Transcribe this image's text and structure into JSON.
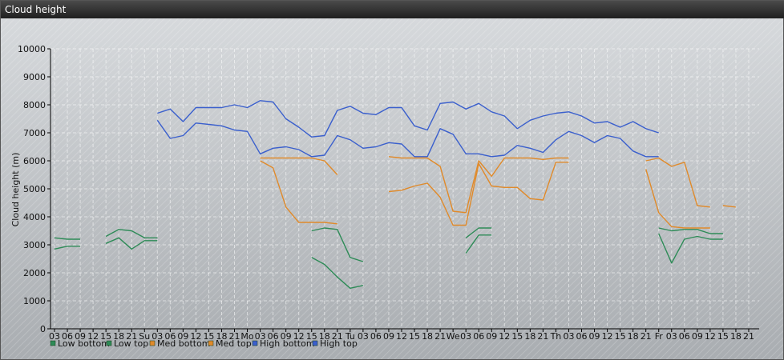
{
  "window": {
    "title": "Cloud height"
  },
  "chart_data": {
    "type": "line",
    "ylabel": "Cloud height (m)",
    "ylim": [
      0,
      10000
    ],
    "yticks": [
      0,
      1000,
      2000,
      3000,
      4000,
      5000,
      6000,
      7000,
      8000,
      9000,
      10000
    ],
    "x_tick_labels": [
      "03",
      "06",
      "09",
      "12",
      "15",
      "18",
      "21",
      "Su",
      "03",
      "06",
      "09",
      "12",
      "15",
      "18",
      "21",
      "Mo",
      "03",
      "06",
      "09",
      "12",
      "15",
      "18",
      "21",
      "Tu",
      "03",
      "06",
      "09",
      "12",
      "15",
      "18",
      "21",
      "We",
      "03",
      "06",
      "09",
      "12",
      "15",
      "18",
      "21",
      "Th",
      "03",
      "06",
      "09",
      "12",
      "15",
      "18",
      "21",
      "Fr",
      "03",
      "06",
      "09",
      "12",
      "15",
      "18",
      "21"
    ],
    "legend": [
      "Low bottom",
      "Low top",
      "Med bottom",
      "Med top",
      "High bottom",
      "High top"
    ],
    "series": [
      {
        "name": "Low bottom",
        "color": "#2e8b57",
        "points": [
          [
            0,
            2850
          ],
          [
            1,
            2950
          ],
          [
            2,
            2950
          ],
          null,
          [
            4,
            3050
          ],
          [
            5,
            3250
          ],
          [
            6,
            2850
          ],
          [
            7,
            3150
          ],
          [
            8,
            3150
          ],
          null,
          [
            20,
            2550
          ],
          [
            21,
            2300
          ],
          [
            22,
            1850
          ],
          [
            23,
            1450
          ],
          [
            24,
            1550
          ],
          null,
          [
            32,
            2700
          ],
          [
            33,
            3350
          ],
          [
            34,
            3350
          ],
          null,
          [
            47,
            3400
          ],
          [
            48,
            2350
          ],
          [
            49,
            3200
          ],
          [
            50,
            3300
          ],
          [
            51,
            3200
          ],
          [
            52,
            3200
          ]
        ]
      },
      {
        "name": "Low top",
        "color": "#2e8b57",
        "points": [
          [
            0,
            3250
          ],
          [
            1,
            3200
          ],
          [
            2,
            3200
          ],
          null,
          [
            4,
            3300
          ],
          [
            5,
            3550
          ],
          [
            6,
            3500
          ],
          [
            7,
            3250
          ],
          [
            8,
            3250
          ],
          null,
          [
            20,
            3500
          ],
          [
            21,
            3600
          ],
          [
            22,
            3550
          ],
          [
            23,
            2550
          ],
          [
            24,
            2400
          ],
          null,
          [
            32,
            3250
          ],
          [
            33,
            3600
          ],
          [
            34,
            3600
          ],
          null,
          [
            47,
            3600
          ],
          [
            48,
            3500
          ],
          [
            49,
            3550
          ],
          [
            50,
            3550
          ],
          [
            51,
            3400
          ],
          [
            52,
            3400
          ]
        ]
      },
      {
        "name": "Med bottom",
        "color": "#e08a2a",
        "points": [
          [
            16,
            6000
          ],
          [
            17,
            5750
          ],
          [
            18,
            4350
          ],
          [
            19,
            3800
          ],
          [
            20,
            3800
          ],
          [
            21,
            3800
          ],
          [
            22,
            3750
          ],
          null,
          [
            26,
            4900
          ],
          [
            27,
            4950
          ],
          [
            28,
            5100
          ],
          [
            29,
            5200
          ],
          [
            30,
            4700
          ],
          [
            31,
            3700
          ],
          [
            32,
            3700
          ],
          [
            33,
            5900
          ],
          [
            34,
            5100
          ],
          [
            35,
            5050
          ],
          [
            36,
            5050
          ],
          [
            37,
            4650
          ],
          [
            38,
            4600
          ],
          [
            39,
            5950
          ],
          [
            40,
            5950
          ],
          null,
          [
            46,
            5700
          ],
          [
            47,
            4150
          ],
          [
            48,
            3650
          ],
          [
            49,
            3600
          ],
          [
            50,
            3600
          ],
          [
            51,
            3600
          ],
          null,
          [
            52,
            4400
          ],
          [
            53,
            4350
          ]
        ]
      },
      {
        "name": "Med top",
        "color": "#e08a2a",
        "points": [
          [
            16,
            6100
          ],
          [
            17,
            6100
          ],
          [
            18,
            6100
          ],
          [
            19,
            6100
          ],
          [
            20,
            6100
          ],
          [
            21,
            6000
          ],
          [
            22,
            5500
          ],
          null,
          [
            26,
            6150
          ],
          [
            27,
            6100
          ],
          [
            28,
            6100
          ],
          [
            29,
            6100
          ],
          [
            30,
            5800
          ],
          [
            31,
            4200
          ],
          [
            32,
            4150
          ],
          [
            33,
            6000
          ],
          [
            34,
            5450
          ],
          [
            35,
            6100
          ],
          [
            36,
            6100
          ],
          [
            37,
            6100
          ],
          [
            38,
            6050
          ],
          [
            39,
            6100
          ],
          [
            40,
            6100
          ],
          null,
          [
            46,
            6000
          ],
          [
            47,
            6100
          ],
          [
            48,
            5800
          ],
          [
            49,
            5950
          ],
          [
            50,
            4400
          ],
          [
            51,
            4350
          ]
        ]
      },
      {
        "name": "High bottom",
        "color": "#3a5fcd",
        "points": [
          [
            8,
            7450
          ],
          [
            9,
            6800
          ],
          [
            10,
            6900
          ],
          [
            11,
            7350
          ],
          [
            12,
            7300
          ],
          [
            13,
            7250
          ],
          [
            14,
            7100
          ],
          [
            15,
            7050
          ],
          [
            16,
            6250
          ],
          [
            17,
            6450
          ],
          [
            18,
            6500
          ],
          [
            19,
            6400
          ],
          [
            20,
            6150
          ],
          [
            21,
            6200
          ],
          [
            22,
            6900
          ],
          [
            23,
            6750
          ],
          [
            24,
            6450
          ],
          [
            25,
            6500
          ],
          [
            26,
            6650
          ],
          [
            27,
            6600
          ],
          [
            28,
            6150
          ],
          [
            29,
            6150
          ],
          [
            30,
            7150
          ],
          [
            31,
            6950
          ],
          [
            32,
            6250
          ],
          [
            33,
            6250
          ],
          [
            34,
            6150
          ],
          [
            35,
            6200
          ],
          [
            36,
            6550
          ],
          [
            37,
            6450
          ],
          [
            38,
            6300
          ],
          [
            39,
            6750
          ],
          [
            40,
            7050
          ],
          [
            41,
            6900
          ],
          [
            42,
            6650
          ],
          [
            43,
            6900
          ],
          [
            44,
            6800
          ],
          [
            45,
            6350
          ],
          [
            46,
            6150
          ],
          [
            47,
            6150
          ]
        ]
      },
      {
        "name": "High top",
        "color": "#3a5fcd",
        "points": [
          [
            8,
            7700
          ],
          [
            9,
            7850
          ],
          [
            10,
            7400
          ],
          [
            11,
            7900
          ],
          [
            12,
            7900
          ],
          [
            13,
            7900
          ],
          [
            14,
            8000
          ],
          [
            15,
            7900
          ],
          [
            16,
            8150
          ],
          [
            17,
            8100
          ],
          [
            18,
            7500
          ],
          [
            19,
            7200
          ],
          [
            20,
            6850
          ],
          [
            21,
            6900
          ],
          [
            22,
            7800
          ],
          [
            23,
            7950
          ],
          [
            24,
            7700
          ],
          [
            25,
            7650
          ],
          [
            26,
            7900
          ],
          [
            27,
            7900
          ],
          [
            28,
            7250
          ],
          [
            29,
            7100
          ],
          [
            30,
            8050
          ],
          [
            31,
            8100
          ],
          [
            32,
            7850
          ],
          [
            33,
            8050
          ],
          [
            34,
            7750
          ],
          [
            35,
            7600
          ],
          [
            36,
            7150
          ],
          [
            37,
            7450
          ],
          [
            38,
            7600
          ],
          [
            39,
            7700
          ],
          [
            40,
            7750
          ],
          [
            41,
            7600
          ],
          [
            42,
            7350
          ],
          [
            43,
            7400
          ],
          [
            44,
            7200
          ],
          [
            45,
            7400
          ],
          [
            46,
            7150
          ],
          [
            47,
            7000
          ]
        ]
      }
    ]
  }
}
